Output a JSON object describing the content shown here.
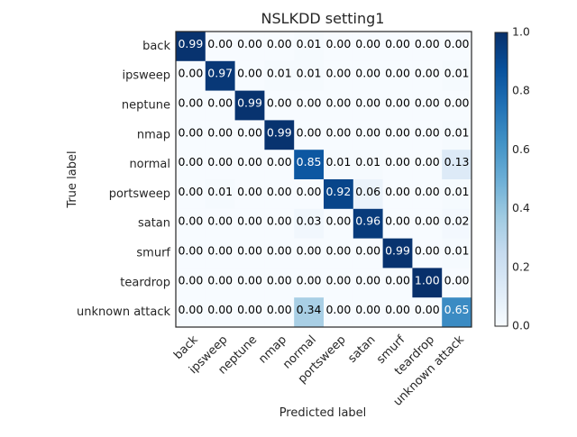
{
  "chart_data": {
    "type": "heatmap",
    "title": "NSLKDD setting1",
    "xlabel": "Predicted label",
    "ylabel": "True label",
    "x_categories": [
      "back",
      "ipsweep",
      "neptune",
      "nmap",
      "normal",
      "portsweep",
      "satan",
      "smurf",
      "teardrop",
      "unknown attack"
    ],
    "y_categories": [
      "back",
      "ipsweep",
      "neptune",
      "nmap",
      "normal",
      "portsweep",
      "satan",
      "smurf",
      "teardrop",
      "unknown attack"
    ],
    "values": [
      [
        0.99,
        0.0,
        0.0,
        0.0,
        0.01,
        0.0,
        0.0,
        0.0,
        0.0,
        0.0
      ],
      [
        0.0,
        0.97,
        0.0,
        0.01,
        0.01,
        0.0,
        0.0,
        0.0,
        0.0,
        0.01
      ],
      [
        0.0,
        0.0,
        0.99,
        0.0,
        0.0,
        0.0,
        0.0,
        0.0,
        0.0,
        0.0
      ],
      [
        0.0,
        0.0,
        0.0,
        0.99,
        0.0,
        0.0,
        0.0,
        0.0,
        0.0,
        0.01
      ],
      [
        0.0,
        0.0,
        0.0,
        0.0,
        0.85,
        0.01,
        0.01,
        0.0,
        0.0,
        0.13
      ],
      [
        0.0,
        0.01,
        0.0,
        0.0,
        0.0,
        0.92,
        0.06,
        0.0,
        0.0,
        0.01
      ],
      [
        0.0,
        0.0,
        0.0,
        0.0,
        0.03,
        0.0,
        0.96,
        0.0,
        0.0,
        0.02
      ],
      [
        0.0,
        0.0,
        0.0,
        0.0,
        0.0,
        0.0,
        0.0,
        0.99,
        0.0,
        0.01
      ],
      [
        0.0,
        0.0,
        0.0,
        0.0,
        0.0,
        0.0,
        0.0,
        0.0,
        1.0,
        0.0
      ],
      [
        0.0,
        0.0,
        0.0,
        0.0,
        0.34,
        0.0,
        0.0,
        0.0,
        0.0,
        0.65
      ]
    ],
    "value_format_decimals": 2,
    "colormap": "Blues",
    "colorbar": {
      "range": [
        0.0,
        1.0
      ],
      "ticks": [
        "0.0",
        "0.2",
        "0.4",
        "0.6",
        "0.8",
        "1.0"
      ],
      "position": "right"
    },
    "grid": false
  }
}
